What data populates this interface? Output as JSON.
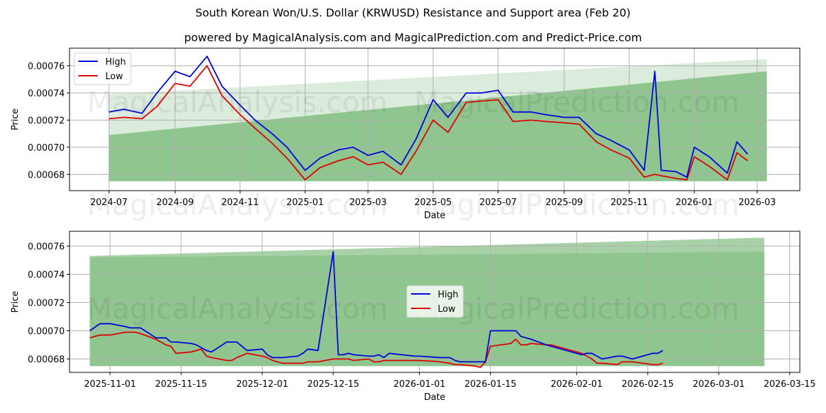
{
  "title": "South Korean Won/U.S. Dollar (KRWUSD) Resistance and Support area (Feb 20)",
  "subtitle": "powered by MagicalAnalysis.com and MagicalPrediction.com and Predict-Price.com",
  "watermarks": [
    "MagicalAnalysis.com",
    "MagicalPrediction.com"
  ],
  "colors": {
    "high": "#0000dd",
    "low": "#dd0000",
    "band_dark": "#8fc58f",
    "band_light": "#dcecdc",
    "band_top_light": "#a8d1a8",
    "grid": "#b0b0b0"
  },
  "chart_data": [
    {
      "type": "line",
      "title": "Full history",
      "xlabel": "Date",
      "ylabel": "Price",
      "ylim": [
        0.000668,
        0.000773
      ],
      "xlim": [
        "2024-05-25",
        "2026-04-10"
      ],
      "grid": true,
      "legend": {
        "position": "upper left",
        "entries": [
          "High",
          "Low"
        ]
      },
      "x_ticks": [
        "2024-07",
        "2024-09",
        "2024-11",
        "2025-01",
        "2025-03",
        "2025-05",
        "2025-07",
        "2025-09",
        "2025-11",
        "2026-01",
        "2026-03"
      ],
      "y_ticks": [
        "0.00068",
        "0.00070",
        "0.00072",
        "0.00074",
        "0.00076"
      ],
      "bands": {
        "x_start": "2024-07-01",
        "x_end": "2026-03-10",
        "support_bottom": [
          0.000675,
          0.000675
        ],
        "dark_top": [
          0.000709,
          0.000756
        ],
        "light_top": [
          0.000739,
          0.000765
        ]
      },
      "x": [
        "2024-07-01",
        "2024-07-15",
        "2024-08-01",
        "2024-08-15",
        "2024-09-01",
        "2024-09-15",
        "2024-10-01",
        "2024-10-15",
        "2024-11-01",
        "2024-11-15",
        "2024-12-01",
        "2024-12-15",
        "2025-01-01",
        "2025-01-15",
        "2025-02-01",
        "2025-02-15",
        "2025-03-01",
        "2025-03-15",
        "2025-04-01",
        "2025-04-15",
        "2025-05-01",
        "2025-05-15",
        "2025-06-01",
        "2025-06-15",
        "2025-07-01",
        "2025-07-15",
        "2025-08-01",
        "2025-08-15",
        "2025-09-01",
        "2025-09-15",
        "2025-10-01",
        "2025-10-15",
        "2025-11-01",
        "2025-11-15",
        "2025-11-25",
        "2025-12-01",
        "2025-12-15",
        "2025-12-25",
        "2026-01-01",
        "2026-01-15",
        "2026-02-01",
        "2026-02-10",
        "2026-02-20"
      ],
      "series": [
        {
          "name": "High",
          "values": [
            0.000726,
            0.000728,
            0.000725,
            0.00074,
            0.000756,
            0.000752,
            0.000767,
            0.000745,
            0.000731,
            0.00072,
            0.00071,
            0.0007,
            0.000683,
            0.000692,
            0.000698,
            0.0007,
            0.000694,
            0.000697,
            0.000687,
            0.000706,
            0.000735,
            0.000722,
            0.00074,
            0.00074,
            0.000742,
            0.000726,
            0.000726,
            0.000724,
            0.000722,
            0.000722,
            0.00071,
            0.000705,
            0.000698,
            0.000683,
            0.000756,
            0.000683,
            0.000682,
            0.000678,
            0.0007,
            0.000693,
            0.000681,
            0.000704,
            0.000695
          ]
        },
        {
          "name": "Low",
          "values": [
            0.000721,
            0.000722,
            0.000721,
            0.00073,
            0.000747,
            0.000745,
            0.00076,
            0.000738,
            0.000724,
            0.000714,
            0.000703,
            0.000692,
            0.000676,
            0.000685,
            0.00069,
            0.000693,
            0.000687,
            0.000689,
            0.00068,
            0.000697,
            0.00072,
            0.000711,
            0.000733,
            0.000734,
            0.000735,
            0.000719,
            0.00072,
            0.000719,
            0.000718,
            0.000717,
            0.000704,
            0.000698,
            0.000692,
            0.000678,
            0.00068,
            0.000679,
            0.000677,
            0.000676,
            0.000693,
            0.000686,
            0.000676,
            0.000696,
            0.00069
          ]
        }
      ]
    },
    {
      "type": "line",
      "title": "Recent detail",
      "xlabel": "Date",
      "ylabel": "Price",
      "ylim": [
        0.0006705,
        0.0007705
      ],
      "xlim": [
        "2025-10-24",
        "2026-03-17"
      ],
      "grid": true,
      "legend": {
        "position": "center",
        "entries": [
          "High",
          "Low"
        ]
      },
      "x_ticks": [
        "2025-11-01",
        "2025-11-15",
        "2025-12-01",
        "2025-12-15",
        "2026-01-01",
        "2026-01-15",
        "2026-02-01",
        "2026-02-15",
        "2026-03-01",
        "2026-03-15"
      ],
      "y_ticks": [
        "0.00068",
        "0.00070",
        "0.00072",
        "0.00074",
        "0.00076"
      ],
      "bands": {
        "x_start": "2025-10-28",
        "x_end": "2026-03-10",
        "support_bottom": [
          0.000675,
          0.000675
        ],
        "dark_top": [
          0.000752,
          0.000756
        ],
        "light_top": [
          0.000753,
          0.000766
        ]
      },
      "x": [
        "2025-10-28",
        "2025-10-30",
        "2025-11-01",
        "2025-11-04",
        "2025-11-05",
        "2025-11-06",
        "2025-11-07",
        "2025-11-10",
        "2025-11-12",
        "2025-11-13",
        "2025-11-14",
        "2025-11-17",
        "2025-11-18",
        "2025-11-19",
        "2025-11-20",
        "2025-11-21",
        "2025-11-24",
        "2025-11-25",
        "2025-11-26",
        "2025-11-28",
        "2025-12-01",
        "2025-12-02",
        "2025-12-03",
        "2025-12-05",
        "2025-12-08",
        "2025-12-09",
        "2025-12-10",
        "2025-12-12",
        "2025-12-15",
        "2025-12-16",
        "2025-12-17",
        "2025-12-18",
        "2025-12-19",
        "2025-12-22",
        "2025-12-23",
        "2025-12-24",
        "2025-12-25",
        "2025-12-26",
        "2025-12-31",
        "2026-01-01",
        "2026-01-05",
        "2026-01-07",
        "2026-01-08",
        "2026-01-09",
        "2026-01-12",
        "2026-01-13",
        "2026-01-14",
        "2026-01-15",
        "2026-01-19",
        "2026-01-20",
        "2026-01-21",
        "2026-01-22",
        "2026-01-23",
        "2026-01-26",
        "2026-01-27",
        "2026-01-28",
        "2026-02-02",
        "2026-02-03",
        "2026-02-04",
        "2026-02-05",
        "2026-02-06",
        "2026-02-09",
        "2026-02-10",
        "2026-02-11",
        "2026-02-12",
        "2026-02-16",
        "2026-02-17",
        "2026-02-18"
      ],
      "series": [
        {
          "name": "High",
          "values": [
            0.0007,
            0.000705,
            0.000705,
            0.000703,
            0.000702,
            0.000702,
            0.000702,
            0.000695,
            0.000695,
            0.000692,
            0.000692,
            0.000691,
            0.00069,
            0.000688,
            0.000686,
            0.000685,
            0.000692,
            0.000692,
            0.000692,
            0.000686,
            0.000687,
            0.000683,
            0.000681,
            0.000681,
            0.000682,
            0.000684,
            0.000687,
            0.000686,
            0.000756,
            0.000683,
            0.000683,
            0.000684,
            0.000683,
            0.000682,
            0.000682,
            0.000683,
            0.000681,
            0.000684,
            0.000682,
            0.000682,
            0.000681,
            0.000681,
            0.000679,
            0.000678,
            0.000678,
            0.000678,
            0.000678,
            0.0007,
            0.0007,
            0.0007,
            0.000696,
            0.000695,
            0.000694,
            0.00069,
            0.000689,
            0.000688,
            0.000683,
            0.000684,
            0.000684,
            0.000682,
            0.00068,
            0.000682,
            0.000682,
            0.000681,
            0.00068,
            0.000684,
            0.000684,
            0.000686
          ]
        },
        {
          "name": "Low",
          "values": [
            0.000695,
            0.000697,
            0.000697,
            0.000699,
            0.000699,
            0.000699,
            0.000698,
            0.000694,
            0.00069,
            0.000689,
            0.000684,
            0.000685,
            0.000686,
            0.000687,
            0.000682,
            0.000681,
            0.000679,
            0.000679,
            0.000681,
            0.000684,
            0.000682,
            0.000681,
            0.000679,
            0.000677,
            0.000677,
            0.000677,
            0.000678,
            0.000678,
            0.00068,
            0.00068,
            0.00068,
            0.00068,
            0.000679,
            0.00068,
            0.000678,
            0.000678,
            0.000679,
            0.000679,
            0.000679,
            0.000679,
            0.000678,
            0.000677,
            0.000676,
            0.000676,
            0.000675,
            0.000674,
            0.000678,
            0.000689,
            0.000691,
            0.000694,
            0.00069,
            0.00069,
            0.000691,
            0.00069,
            0.00069,
            0.000689,
            0.000684,
            0.000682,
            0.00068,
            0.000677,
            0.000677,
            0.000676,
            0.000678,
            0.000678,
            0.000678,
            0.000676,
            0.000676,
            0.000677
          ]
        }
      ]
    }
  ]
}
